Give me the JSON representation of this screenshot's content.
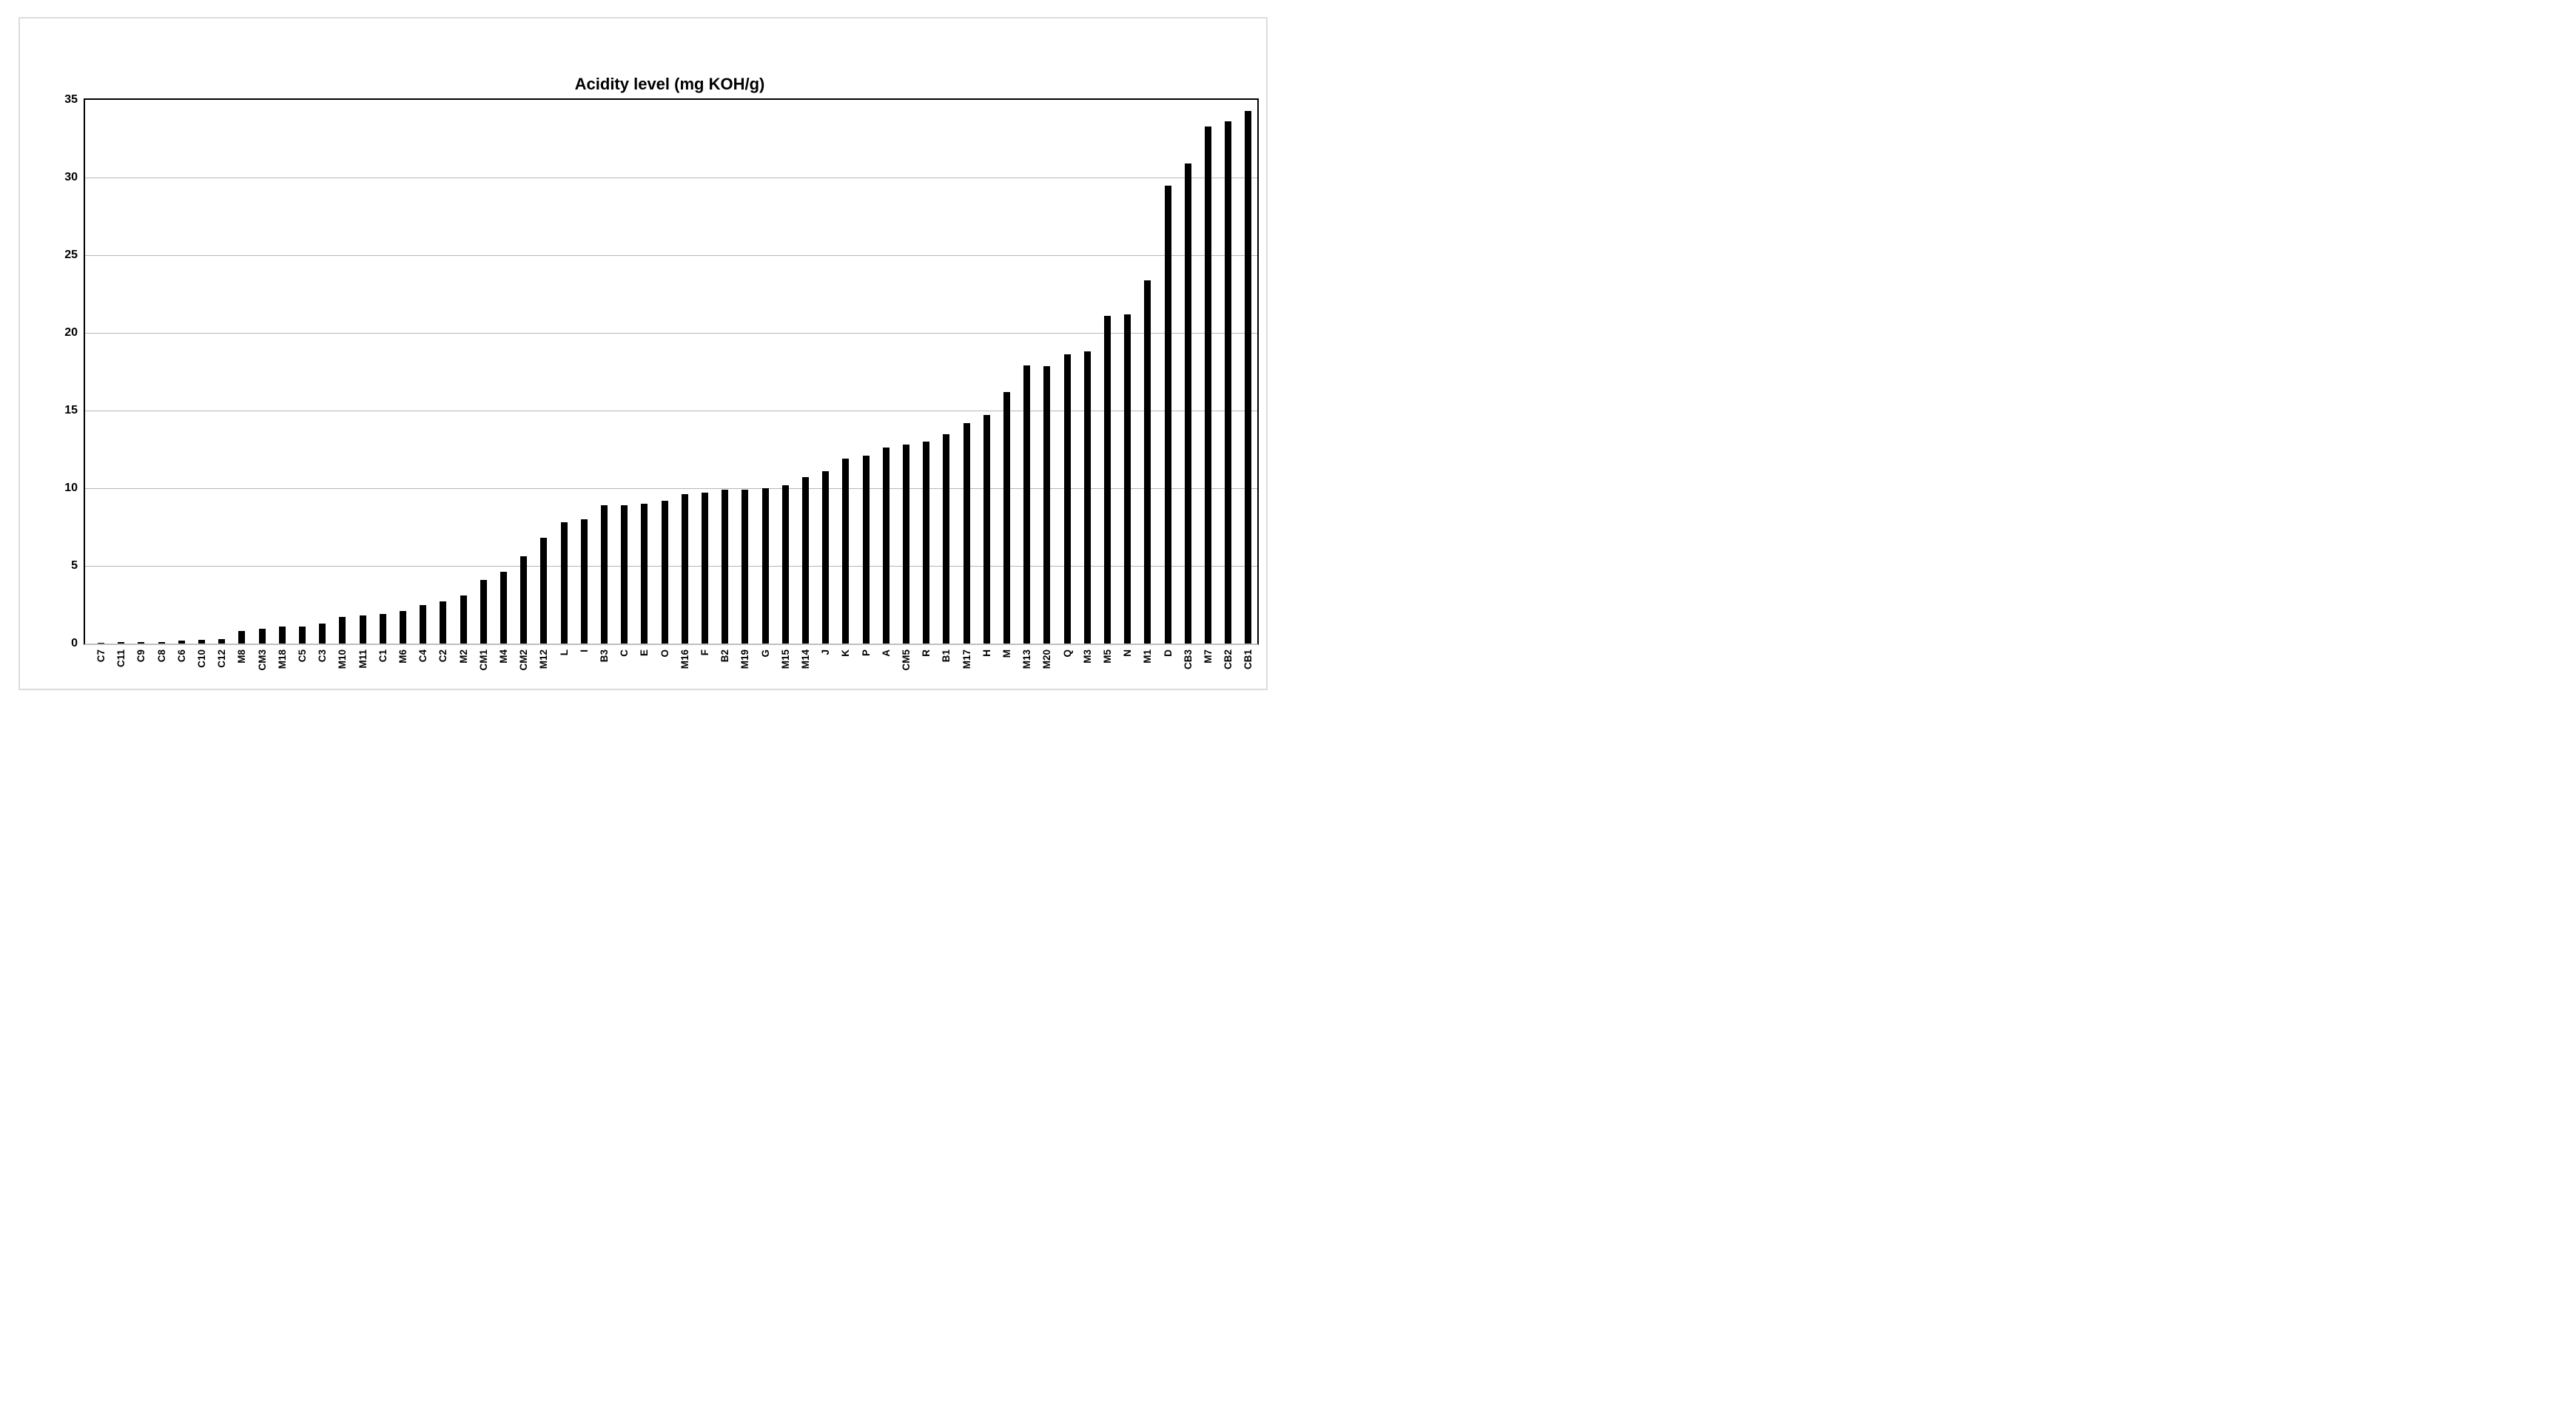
{
  "chart_data": {
    "type": "bar",
    "title": "Acidity level (mg KOH/g)",
    "xlabel": "",
    "ylabel": "",
    "ylim": [
      0,
      35
    ],
    "yticks": [
      0,
      5,
      10,
      15,
      20,
      25,
      30,
      35
    ],
    "grid": "horizontal",
    "legend": "none",
    "bar_color": "#000000",
    "gridline_color": "#b7b7b7",
    "categories": [
      "C7",
      "C11",
      "C9",
      "C8",
      "C6",
      "C10",
      "C12",
      "M8",
      "CM3",
      "M18",
      "C5",
      "C3",
      "M10",
      "M11",
      "C1",
      "M6",
      "C4",
      "C2",
      "M2",
      "CM1",
      "M4",
      "CM2",
      "M12",
      "L",
      "I",
      "B3",
      "C",
      "E",
      "O",
      "M16",
      "F",
      "B2",
      "M19",
      "G",
      "M15",
      "M14",
      "J",
      "K",
      "P",
      "A",
      "CM5",
      "R",
      "B1",
      "M17",
      "H",
      "M",
      "M13",
      "M20",
      "Q",
      "M3",
      "M5",
      "N",
      "M1",
      "D",
      "CB3",
      "M7",
      "CB2",
      "CB1"
    ],
    "values": [
      0.03,
      0.09,
      0.11,
      0.12,
      0.17,
      0.22,
      0.28,
      0.8,
      0.95,
      1.1,
      1.1,
      1.3,
      1.7,
      1.8,
      1.9,
      2.1,
      2.5,
      2.7,
      3.1,
      4.1,
      4.6,
      5.6,
      6.8,
      7.8,
      8.0,
      8.9,
      8.9,
      9.0,
      9.2,
      9.6,
      9.7,
      9.9,
      9.9,
      10.0,
      10.2,
      10.7,
      11.1,
      11.9,
      12.1,
      12.6,
      12.8,
      13.0,
      13.5,
      14.2,
      14.7,
      16.2,
      17.9,
      17.85,
      18.6,
      18.8,
      21.1,
      21.2,
      23.4,
      29.5,
      30.9,
      33.3,
      33.6,
      34.3
    ]
  }
}
